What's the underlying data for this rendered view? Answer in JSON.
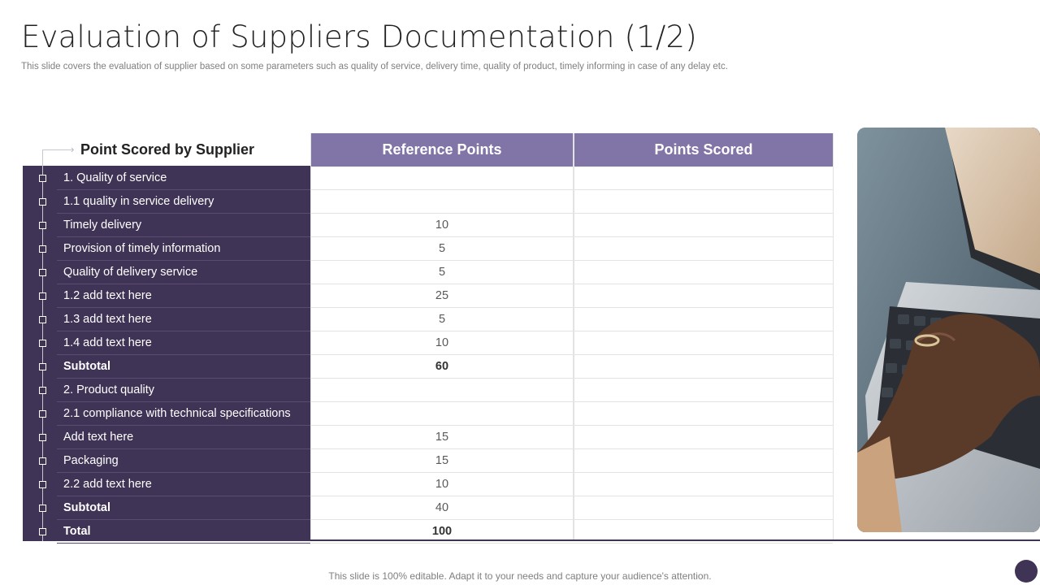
{
  "title": "Evaluation of Suppliers Documentation (1/2)",
  "subtitle": "This slide covers the evaluation of supplier based on some parameters such as quality of service, delivery time, quality of product, timely informing in case of  any delay etc.",
  "table": {
    "header_label": "Point Scored by Supplier",
    "col_reference": "Reference Points",
    "col_scored": "Points Scored",
    "rows": [
      {
        "label": "1. Quality of service",
        "ref": "",
        "score": "",
        "bold": false
      },
      {
        "label": "1.1 quality in service delivery",
        "ref": "",
        "score": "",
        "bold": false
      },
      {
        "label": "Timely delivery",
        "ref": "10",
        "score": "",
        "bold": false
      },
      {
        "label": "Provision of timely information",
        "ref": "5",
        "score": "",
        "bold": false
      },
      {
        "label": "Quality of delivery service",
        "ref": "5",
        "score": "",
        "bold": false
      },
      {
        "label": "1.2 add text here",
        "ref": "25",
        "score": "",
        "bold": false
      },
      {
        "label": "1.3 add text here",
        "ref": "5",
        "score": "",
        "bold": false
      },
      {
        "label": "1.4 add text here",
        "ref": "10",
        "score": "",
        "bold": false
      },
      {
        "label": "Subtotal",
        "ref": "60",
        "score": "",
        "bold": true
      },
      {
        "label": "2. Product quality",
        "ref": "",
        "score": "",
        "bold": false
      },
      {
        "label": "2.1 compliance with technical specifications",
        "ref": "",
        "score": "",
        "bold": false
      },
      {
        "label": "Add text here",
        "ref": "15",
        "score": "",
        "bold": false
      },
      {
        "label": "Packaging",
        "ref": "15",
        "score": "",
        "bold": false
      },
      {
        "label": "2.2 add text here",
        "ref": "10",
        "score": "",
        "bold": false
      },
      {
        "label": "Subtotal",
        "ref": "40",
        "score": "",
        "bold": true,
        "ref_bold": false
      },
      {
        "label": "Total",
        "ref": "100",
        "score": "",
        "bold": true
      }
    ]
  },
  "footer": "This slide is 100% editable. Adapt it to your needs and capture your audience's attention.",
  "colors": {
    "panel": "#3f3356",
    "header": "#8174a6"
  }
}
